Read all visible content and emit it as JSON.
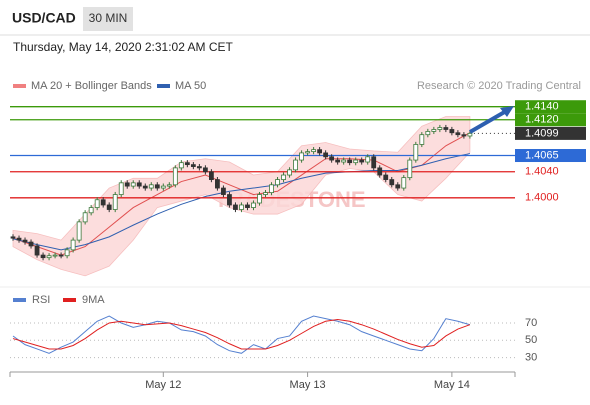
{
  "header": {
    "symbol": "USD/CAD",
    "timeframe": "30 MIN",
    "datetime": "Thursday, May 14, 2020 2:31:02 AM CET"
  },
  "chart_data": [
    {
      "type": "candlestick",
      "source": "Research © 2020 Trading Central",
      "watermark": "TRADESTONE",
      "up_color": "#3d7a3d",
      "down_color": "#333333",
      "xlim": [
        -0.5,
        83.5
      ],
      "ylim": [
        1.3866,
        1.4158
      ],
      "xticks": [
        {
          "value": 25,
          "label": "May 12"
        },
        {
          "value": 49,
          "label": "May 13"
        },
        {
          "value": 73,
          "label": "May 14"
        }
      ],
      "x": [
        0,
        1,
        2,
        3,
        4,
        5,
        6,
        7,
        8,
        9,
        10,
        11,
        12,
        13,
        14,
        15,
        16,
        17,
        18,
        19,
        20,
        21,
        22,
        23,
        24,
        25,
        26,
        27,
        28,
        29,
        30,
        31,
        32,
        33,
        34,
        35,
        36,
        37,
        38,
        39,
        40,
        41,
        42,
        43,
        44,
        45,
        46,
        47,
        48,
        49,
        50,
        51,
        52,
        53,
        54,
        55,
        56,
        57,
        58,
        59,
        60,
        61,
        62,
        63,
        64,
        65,
        66,
        67,
        68,
        69,
        70,
        71,
        72,
        73,
        74,
        75,
        76
      ],
      "candles": [
        [
          1.394,
          1.3944,
          1.3934,
          1.3938
        ],
        [
          1.3938,
          1.3942,
          1.3931,
          1.3935
        ],
        [
          1.3935,
          1.3939,
          1.3928,
          1.3932
        ],
        [
          1.3932,
          1.3936,
          1.3922,
          1.3926
        ],
        [
          1.3926,
          1.393,
          1.3908,
          1.3912
        ],
        [
          1.3912,
          1.3916,
          1.3904,
          1.3908
        ],
        [
          1.3908,
          1.3915,
          1.3904,
          1.3911
        ],
        [
          1.3911,
          1.3916,
          1.3907,
          1.3912
        ],
        [
          1.3912,
          1.3916,
          1.3907,
          1.3911
        ],
        [
          1.3911,
          1.3924,
          1.3907,
          1.392
        ],
        [
          1.392,
          1.3939,
          1.3916,
          1.3935
        ],
        [
          1.3935,
          1.3967,
          1.3931,
          1.3963
        ],
        [
          1.3963,
          1.3981,
          1.3959,
          1.3977
        ],
        [
          1.3977,
          1.3989,
          1.3973,
          1.3985
        ],
        [
          1.3985,
          1.4001,
          1.3981,
          1.3997
        ],
        [
          1.3997,
          1.4001,
          1.3985,
          1.3989
        ],
        [
          1.3989,
          1.3993,
          1.3978,
          1.3982
        ],
        [
          1.3982,
          1.4009,
          1.3978,
          1.4005
        ],
        [
          1.4005,
          1.4027,
          1.4001,
          1.4023
        ],
        [
          1.4023,
          1.4027,
          1.4014,
          1.4018
        ],
        [
          1.4018,
          1.4027,
          1.4014,
          1.4023
        ],
        [
          1.4023,
          1.4027,
          1.4014,
          1.4018
        ],
        [
          1.4018,
          1.4022,
          1.4011,
          1.4015
        ],
        [
          1.4015,
          1.4024,
          1.4011,
          1.402
        ],
        [
          1.402,
          1.4024,
          1.4011,
          1.4015
        ],
        [
          1.4015,
          1.4022,
          1.4011,
          1.4018
        ],
        [
          1.4018,
          1.4024,
          1.4014,
          1.402
        ],
        [
          1.402,
          1.405,
          1.4016,
          1.4046
        ],
        [
          1.4046,
          1.4058,
          1.4042,
          1.4054
        ],
        [
          1.4054,
          1.4058,
          1.4047,
          1.4051
        ],
        [
          1.4051,
          1.4055,
          1.4044,
          1.4048
        ],
        [
          1.4048,
          1.4052,
          1.4042,
          1.4046
        ],
        [
          1.4046,
          1.405,
          1.4036,
          1.404
        ],
        [
          1.404,
          1.4044,
          1.4024,
          1.4028
        ],
        [
          1.4028,
          1.4032,
          1.4011,
          1.4015
        ],
        [
          1.4015,
          1.4019,
          1.4001,
          1.4005
        ],
        [
          1.4005,
          1.4009,
          1.3985,
          1.3989
        ],
        [
          1.3989,
          1.3993,
          1.3978,
          1.3982
        ],
        [
          1.3982,
          1.3993,
          1.3978,
          1.3989
        ],
        [
          1.3989,
          1.3993,
          1.3981,
          1.3985
        ],
        [
          1.3985,
          1.3996,
          1.3981,
          1.3992
        ],
        [
          1.3992,
          1.4009,
          1.3988,
          1.4005
        ],
        [
          1.4005,
          1.4012,
          1.4001,
          1.4008
        ],
        [
          1.4008,
          1.4024,
          1.4004,
          1.402
        ],
        [
          1.402,
          1.4032,
          1.4016,
          1.4028
        ],
        [
          1.4028,
          1.4039,
          1.4024,
          1.4035
        ],
        [
          1.4035,
          1.4047,
          1.4031,
          1.4043
        ],
        [
          1.4043,
          1.4062,
          1.4039,
          1.4058
        ],
        [
          1.4058,
          1.4073,
          1.4054,
          1.4069
        ],
        [
          1.4069,
          1.4075,
          1.4065,
          1.4071
        ],
        [
          1.4071,
          1.4078,
          1.4067,
          1.4074
        ],
        [
          1.4074,
          1.4078,
          1.4065,
          1.4069
        ],
        [
          1.4069,
          1.4073,
          1.4059,
          1.4063
        ],
        [
          1.4063,
          1.4067,
          1.4054,
          1.4058
        ],
        [
          1.4058,
          1.4062,
          1.4051,
          1.4055
        ],
        [
          1.4055,
          1.4062,
          1.4051,
          1.4058
        ],
        [
          1.4058,
          1.4062,
          1.405,
          1.4054
        ],
        [
          1.4054,
          1.4062,
          1.405,
          1.4058
        ],
        [
          1.4058,
          1.4062,
          1.4051,
          1.4055
        ],
        [
          1.4055,
          1.4067,
          1.4051,
          1.4063
        ],
        [
          1.4063,
          1.4067,
          1.4042,
          1.4046
        ],
        [
          1.4046,
          1.405,
          1.4031,
          1.4035
        ],
        [
          1.4035,
          1.4039,
          1.4024,
          1.4028
        ],
        [
          1.4028,
          1.4032,
          1.4016,
          1.402
        ],
        [
          1.402,
          1.4024,
          1.4011,
          1.4015
        ],
        [
          1.4015,
          1.4035,
          1.4011,
          1.4031
        ],
        [
          1.4031,
          1.4062,
          1.4027,
          1.4058
        ],
        [
          1.4058,
          1.4086,
          1.4054,
          1.4082
        ],
        [
          1.4082,
          1.4101,
          1.4078,
          1.4097
        ],
        [
          1.4097,
          1.4106,
          1.4093,
          1.4102
        ],
        [
          1.4102,
          1.4109,
          1.4098,
          1.4105
        ],
        [
          1.4105,
          1.4112,
          1.4101,
          1.4108
        ],
        [
          1.4108,
          1.4112,
          1.4101,
          1.4105
        ],
        [
          1.4105,
          1.4109,
          1.4096,
          1.41
        ],
        [
          1.41,
          1.4104,
          1.4093,
          1.4097
        ],
        [
          1.4097,
          1.4101,
          1.4091,
          1.4095
        ],
        [
          1.4095,
          1.4103,
          1.4091,
          1.4099
        ]
      ],
      "lines": [
        {
          "name": "MA 20 + Bollinger Bands",
          "color": "#e05050",
          "band_color": "#fcd8d8",
          "x": [
            0,
            4,
            8,
            12,
            16,
            20,
            24,
            28,
            32,
            36,
            40,
            44,
            48,
            52,
            56,
            60,
            64,
            68,
            72,
            76
          ],
          "values": [
            1.3938,
            1.3925,
            1.3912,
            1.3925,
            1.3955,
            1.3985,
            1.4005,
            1.4025,
            1.4035,
            1.402,
            1.4005,
            1.401,
            1.4035,
            1.406,
            1.406,
            1.4058,
            1.404,
            1.405,
            1.408,
            1.41
          ],
          "upper": [
            1.395,
            1.3945,
            1.3935,
            1.3975,
            1.4015,
            1.403,
            1.403,
            1.4055,
            1.406,
            1.4055,
            1.4035,
            1.404,
            1.408,
            1.4085,
            1.4075,
            1.4072,
            1.407,
            1.411,
            1.4125,
            1.4125
          ],
          "lower": [
            1.3925,
            1.3905,
            1.389,
            1.388,
            1.3895,
            1.3935,
            1.3985,
            1.3995,
            1.4005,
            1.3985,
            1.3975,
            1.3975,
            1.399,
            1.4035,
            1.4045,
            1.404,
            1.4005,
            1.3995,
            1.403,
            1.407
          ]
        },
        {
          "name": "MA 50",
          "color": "#3060b0",
          "x": [
            0,
            4,
            8,
            12,
            16,
            20,
            24,
            28,
            32,
            36,
            40,
            44,
            48,
            52,
            56,
            60,
            64,
            68,
            72,
            76
          ],
          "values": [
            1.3937,
            1.3928,
            1.392,
            1.3928,
            1.394,
            1.3958,
            1.3975,
            1.399,
            1.4002,
            1.401,
            1.4015,
            1.402,
            1.403,
            1.4038,
            1.404,
            1.4042,
            1.4042,
            1.405,
            1.406,
            1.4068
          ]
        }
      ],
      "levels": [
        {
          "value": 1.414,
          "label": "1.4140",
          "color": "#3c9a0a",
          "box": true
        },
        {
          "value": 1.412,
          "label": "1.4120",
          "color": "#3c9a0a",
          "box": true
        },
        {
          "value": 1.4099,
          "label": "1.4099",
          "color": "#333333",
          "box": true,
          "dotted": true
        },
        {
          "value": 1.4065,
          "label": "1.4065",
          "color": "#2d6ad6",
          "box": true
        },
        {
          "value": 1.404,
          "label": "1.4040",
          "color": "#e02020",
          "box": false
        },
        {
          "value": 1.4,
          "label": "1.4000",
          "color": "#e02020",
          "box": false
        }
      ]
    },
    {
      "type": "line",
      "ylim": [
        18,
        85
      ],
      "yticks": [
        70,
        50,
        30
      ],
      "grid": true,
      "x": [
        0,
        2,
        4,
        6,
        8,
        10,
        12,
        14,
        16,
        18,
        20,
        22,
        24,
        26,
        28,
        30,
        32,
        34,
        36,
        38,
        40,
        42,
        44,
        46,
        48,
        50,
        52,
        54,
        56,
        58,
        60,
        62,
        64,
        66,
        68,
        70,
        72,
        74,
        76
      ],
      "series": [
        {
          "name": "RSI",
          "color": "#5580d0",
          "values": [
            55,
            45,
            40,
            35,
            42,
            48,
            60,
            72,
            78,
            70,
            65,
            68,
            72,
            70,
            62,
            60,
            55,
            45,
            38,
            35,
            45,
            40,
            52,
            55,
            72,
            78,
            75,
            72,
            68,
            60,
            55,
            50,
            45,
            40,
            38,
            52,
            75,
            72,
            68
          ]
        },
        {
          "name": "9MA",
          "color": "#e02020",
          "values": [
            52,
            48,
            44,
            40,
            40,
            44,
            52,
            62,
            70,
            72,
            70,
            68,
            69,
            70,
            67,
            63,
            59,
            53,
            46,
            40,
            40,
            40,
            44,
            50,
            58,
            66,
            72,
            74,
            72,
            68,
            63,
            57,
            51,
            46,
            42,
            44,
            55,
            63,
            68
          ]
        }
      ]
    }
  ]
}
